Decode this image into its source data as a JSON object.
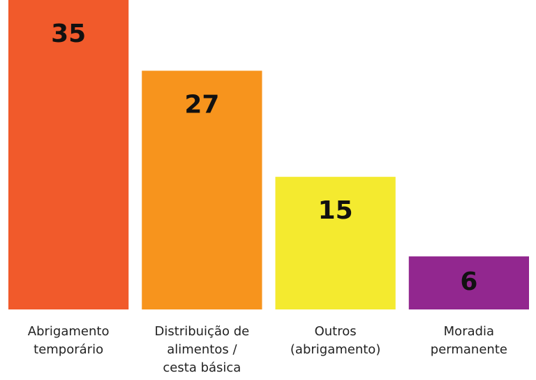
{
  "chart_data": {
    "type": "bar",
    "categories": [
      [
        "Abrigamento",
        "temporário"
      ],
      [
        "Distribuição de",
        "alimentos /",
        "cesta básica"
      ],
      [
        "Outros",
        "(abrigamento)"
      ],
      [
        "Moradia",
        "permanente"
      ]
    ],
    "values": [
      35,
      27,
      15,
      6
    ],
    "colors": [
      "#f15a2b",
      "#f7941d",
      "#f4ea2f",
      "#92278f"
    ],
    "ylim": [
      0,
      35
    ]
  }
}
